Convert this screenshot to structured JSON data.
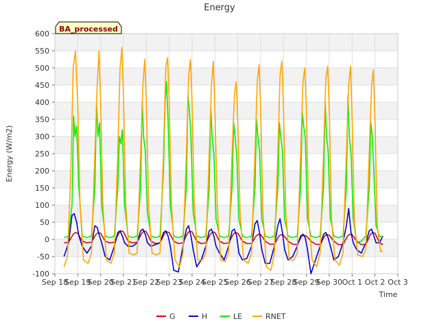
{
  "chart_data": {
    "type": "line",
    "title": "Energy",
    "ylabel": "Energy (W/m2)",
    "xlabel": "Time",
    "annotation": "BA_processed",
    "ylim": [
      -100,
      600
    ],
    "yticks": [
      -100,
      -50,
      0,
      50,
      100,
      150,
      200,
      250,
      300,
      350,
      400,
      450,
      500,
      550,
      600
    ],
    "xlim": [
      0,
      15
    ],
    "xticks": [
      {
        "v": 0,
        "label": "Sep 18"
      },
      {
        "v": 1,
        "label": "Sep 19"
      },
      {
        "v": 2,
        "label": "Sep 20"
      },
      {
        "v": 3,
        "label": "Sep 21"
      },
      {
        "v": 4,
        "label": "Sep 22"
      },
      {
        "v": 5,
        "label": "Sep 23"
      },
      {
        "v": 6,
        "label": "Sep 24"
      },
      {
        "v": 7,
        "label": "Sep 25"
      },
      {
        "v": 8,
        "label": "Sep 26"
      },
      {
        "v": 9,
        "label": "Sep 27"
      },
      {
        "v": 10,
        "label": "Sep 28"
      },
      {
        "v": 11,
        "label": "Sep 29"
      },
      {
        "v": 12,
        "label": "Sep 30"
      },
      {
        "v": 13,
        "label": "Oct 1"
      },
      {
        "v": 14,
        "label": "Oct 2"
      },
      {
        "v": 15,
        "label": "Oct 3"
      }
    ],
    "grid": true,
    "legend_position": "bottom",
    "series": [
      {
        "name": "G",
        "color": "#dd0000",
        "x": [
          0.4,
          0.6,
          0.8,
          0.9,
          1.0,
          1.2,
          1.4,
          1.6,
          1.8,
          1.9,
          2.0,
          2.2,
          2.4,
          2.6,
          2.8,
          2.9,
          3.0,
          3.2,
          3.4,
          3.6,
          3.8,
          3.9,
          4.0,
          4.2,
          4.4,
          4.6,
          4.8,
          4.9,
          5.0,
          5.2,
          5.4,
          5.6,
          5.8,
          5.9,
          6.0,
          6.2,
          6.4,
          6.6,
          6.8,
          6.9,
          7.0,
          7.2,
          7.4,
          7.6,
          7.8,
          7.9,
          8.0,
          8.2,
          8.4,
          8.6,
          8.8,
          8.9,
          9.0,
          9.2,
          9.4,
          9.6,
          9.8,
          9.9,
          10.0,
          10.2,
          10.4,
          10.6,
          10.8,
          10.9,
          11.0,
          11.2,
          11.4,
          11.6,
          11.8,
          11.9,
          12.0,
          12.2,
          12.4,
          12.6,
          12.8,
          12.9,
          13.0,
          13.2,
          13.4,
          13.6,
          13.8,
          13.9,
          14.0,
          14.2,
          14.35
        ],
        "y": [
          -10,
          -8,
          15,
          20,
          18,
          -5,
          -10,
          -8,
          15,
          20,
          18,
          -5,
          -10,
          -8,
          18,
          25,
          22,
          -5,
          -10,
          -8,
          18,
          25,
          22,
          -5,
          -12,
          -10,
          18,
          22,
          20,
          -5,
          -12,
          -10,
          18,
          24,
          22,
          -5,
          -12,
          -10,
          15,
          22,
          20,
          -5,
          -12,
          -10,
          15,
          20,
          18,
          -5,
          -12,
          -12,
          10,
          15,
          14,
          -5,
          -14,
          -14,
          10,
          14,
          12,
          -5,
          -14,
          -15,
          10,
          12,
          10,
          -5,
          -14,
          -15,
          10,
          14,
          12,
          -5,
          -15,
          -15,
          10,
          15,
          14,
          -5,
          -15,
          -15,
          15,
          20,
          18,
          -10,
          -15
        ]
      },
      {
        "name": "H",
        "color": "#0000cc",
        "x": [
          0.4,
          0.6,
          0.75,
          0.85,
          0.95,
          1.05,
          1.2,
          1.4,
          1.6,
          1.75,
          1.85,
          1.95,
          2.05,
          2.2,
          2.4,
          2.6,
          2.75,
          2.85,
          2.95,
          3.05,
          3.2,
          3.4,
          3.6,
          3.75,
          3.85,
          3.95,
          4.05,
          4.2,
          4.4,
          4.6,
          4.75,
          4.85,
          4.95,
          5.05,
          5.2,
          5.4,
          5.6,
          5.75,
          5.85,
          5.95,
          6.05,
          6.2,
          6.4,
          6.6,
          6.75,
          6.85,
          6.95,
          7.05,
          7.2,
          7.4,
          7.6,
          7.75,
          7.85,
          7.95,
          8.05,
          8.2,
          8.4,
          8.6,
          8.75,
          8.85,
          8.95,
          9.05,
          9.2,
          9.4,
          9.6,
          9.75,
          9.85,
          9.95,
          10.05,
          10.2,
          10.4,
          10.6,
          10.75,
          10.85,
          10.95,
          11.05,
          11.2,
          11.4,
          11.6,
          11.75,
          11.85,
          11.95,
          12.05,
          12.2,
          12.4,
          12.6,
          12.75,
          12.85,
          12.95,
          13.05,
          13.2,
          13.4,
          13.6,
          13.75,
          13.85,
          13.95,
          14.05,
          14.2,
          14.35
        ],
        "y": [
          -50,
          -10,
          70,
          75,
          50,
          10,
          -20,
          -40,
          -20,
          40,
          35,
          10,
          -10,
          -50,
          -60,
          -20,
          20,
          25,
          10,
          -10,
          -20,
          -20,
          -10,
          25,
          30,
          15,
          -10,
          -20,
          -15,
          -10,
          20,
          25,
          10,
          -20,
          -90,
          -95,
          -20,
          30,
          40,
          10,
          -30,
          -80,
          -60,
          -20,
          25,
          30,
          10,
          -20,
          -40,
          -60,
          -20,
          25,
          30,
          10,
          -40,
          -60,
          -55,
          -20,
          45,
          55,
          20,
          -30,
          -70,
          -70,
          -20,
          40,
          60,
          20,
          -30,
          -60,
          -50,
          -20,
          10,
          15,
          5,
          -30,
          -100,
          -60,
          -20,
          15,
          20,
          5,
          -20,
          -60,
          -50,
          -10,
          40,
          90,
          20,
          -10,
          -30,
          -40,
          -10,
          25,
          30,
          10,
          -10,
          -10,
          10
        ]
      },
      {
        "name": "LE",
        "color": "#00ee00",
        "x": [
          0.4,
          0.6,
          0.75,
          0.82,
          0.88,
          0.95,
          1.05,
          1.2,
          1.4,
          1.6,
          1.75,
          1.82,
          1.88,
          1.95,
          2.05,
          2.2,
          2.4,
          2.6,
          2.75,
          2.82,
          2.88,
          2.95,
          3.05,
          3.2,
          3.4,
          3.6,
          3.75,
          3.82,
          3.88,
          3.95,
          4.05,
          4.2,
          4.4,
          4.6,
          4.75,
          4.82,
          4.88,
          4.95,
          5.05,
          5.2,
          5.4,
          5.6,
          5.75,
          5.82,
          5.88,
          5.95,
          6.05,
          6.2,
          6.4,
          6.6,
          6.75,
          6.82,
          6.88,
          6.95,
          7.05,
          7.2,
          7.4,
          7.6,
          7.75,
          7.82,
          7.88,
          7.95,
          8.05,
          8.2,
          8.4,
          8.6,
          8.75,
          8.82,
          8.88,
          8.95,
          9.05,
          9.2,
          9.4,
          9.6,
          9.75,
          9.82,
          9.88,
          9.95,
          10.05,
          10.2,
          10.4,
          10.6,
          10.75,
          10.82,
          10.88,
          10.95,
          11.05,
          11.2,
          11.4,
          11.6,
          11.75,
          11.82,
          11.88,
          11.95,
          12.05,
          12.2,
          12.4,
          12.6,
          12.75,
          12.82,
          12.88,
          12.95,
          13.05,
          13.2,
          13.4,
          13.6,
          13.75,
          13.82,
          13.88,
          13.95,
          14.05,
          14.2,
          14.35
        ],
        "y": [
          5,
          10,
          100,
          360,
          300,
          330,
          150,
          10,
          5,
          10,
          150,
          400,
          300,
          340,
          100,
          10,
          5,
          10,
          150,
          300,
          280,
          320,
          100,
          10,
          5,
          10,
          150,
          400,
          300,
          260,
          80,
          10,
          5,
          10,
          200,
          400,
          460,
          350,
          100,
          10,
          5,
          10,
          150,
          420,
          380,
          300,
          80,
          10,
          5,
          10,
          150,
          380,
          300,
          250,
          60,
          10,
          5,
          10,
          150,
          340,
          300,
          250,
          60,
          10,
          5,
          10,
          150,
          350,
          300,
          260,
          60,
          10,
          5,
          10,
          150,
          340,
          300,
          260,
          60,
          10,
          5,
          10,
          150,
          370,
          330,
          300,
          60,
          10,
          5,
          10,
          150,
          400,
          300,
          260,
          60,
          10,
          5,
          10,
          150,
          420,
          300,
          250,
          60,
          -10,
          -5,
          10,
          150,
          340,
          300,
          200,
          40,
          10,
          5
        ]
      },
      {
        "name": "RNET",
        "color": "#ffa500",
        "x": [
          0.4,
          0.55,
          0.7,
          0.8,
          0.9,
          1.0,
          1.1,
          1.25,
          1.45,
          1.6,
          1.75,
          1.85,
          1.93,
          2.0,
          2.1,
          2.25,
          2.45,
          2.6,
          2.75,
          2.85,
          2.93,
          3.0,
          3.1,
          3.25,
          3.45,
          3.6,
          3.75,
          3.85,
          3.93,
          4.0,
          4.1,
          4.25,
          4.45,
          4.6,
          4.75,
          4.85,
          4.93,
          5.0,
          5.1,
          5.25,
          5.45,
          5.6,
          5.75,
          5.85,
          5.93,
          6.0,
          6.1,
          6.25,
          6.45,
          6.6,
          6.75,
          6.85,
          6.93,
          7.0,
          7.1,
          7.25,
          7.45,
          7.6,
          7.75,
          7.85,
          7.93,
          8.0,
          8.1,
          8.25,
          8.45,
          8.6,
          8.75,
          8.85,
          8.93,
          9.0,
          9.1,
          9.25,
          9.45,
          9.6,
          9.75,
          9.85,
          9.93,
          10.0,
          10.1,
          10.25,
          10.45,
          10.6,
          10.75,
          10.85,
          10.93,
          11.0,
          11.1,
          11.25,
          11.45,
          11.6,
          11.75,
          11.85,
          11.93,
          12.0,
          12.1,
          12.25,
          12.45,
          12.6,
          12.75,
          12.85,
          12.93,
          13.0,
          13.1,
          13.25,
          13.45,
          13.6,
          13.75,
          13.85,
          13.93,
          14.0,
          14.1,
          14.25,
          14.35
        ],
        "y": [
          -80,
          -50,
          200,
          500,
          550,
          400,
          100,
          -60,
          -70,
          -40,
          250,
          450,
          550,
          400,
          100,
          -60,
          -70,
          -40,
          250,
          500,
          560,
          420,
          100,
          -40,
          -45,
          -40,
          250,
          450,
          525,
          400,
          100,
          -40,
          -45,
          -40,
          250,
          500,
          530,
          400,
          100,
          -60,
          -80,
          -40,
          250,
          480,
          525,
          400,
          100,
          -60,
          -60,
          -40,
          250,
          450,
          520,
          380,
          100,
          -60,
          -65,
          -40,
          250,
          420,
          460,
          340,
          80,
          -60,
          -70,
          -40,
          250,
          460,
          510,
          380,
          80,
          -80,
          -90,
          -40,
          250,
          480,
          520,
          380,
          80,
          -60,
          -60,
          -40,
          250,
          460,
          500,
          380,
          60,
          -60,
          -80,
          -40,
          250,
          470,
          505,
          380,
          60,
          -60,
          -75,
          -40,
          250,
          450,
          505,
          360,
          50,
          -45,
          -50,
          -30,
          250,
          450,
          495,
          350,
          40,
          -35,
          -35
        ]
      }
    ]
  }
}
